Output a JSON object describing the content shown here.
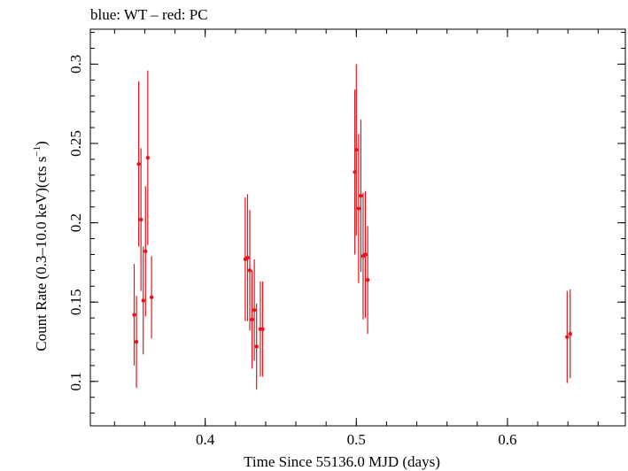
{
  "chart_data": {
    "type": "scatter",
    "title": "blue: WT – red: PC",
    "xlabel": "Time Since 55136.0 MJD (days)",
    "ylabel_main": "Count Rate (0.3–10.0 keV)(cts s",
    "ylabel_sup": "−1",
    "ylabel_close": ")",
    "xlim": [
      0.324,
      0.678
    ],
    "ylim": [
      0.072,
      0.322
    ],
    "xticks": [
      0.4,
      0.5,
      0.6
    ],
    "xtick_labels": [
      "0.4",
      "0.5",
      "0.6"
    ],
    "yticks": [
      0.1,
      0.15,
      0.2,
      0.25,
      0.3
    ],
    "ytick_labels": [
      "0.1",
      "0.15",
      "0.2",
      "0.25",
      "0.3"
    ],
    "grid": false,
    "colors": {
      "pc": "#e8141c",
      "axis": "#000000"
    },
    "series": [
      {
        "name": "PC",
        "color": "#e8141c",
        "points": [
          {
            "x": 0.353,
            "y": 0.142,
            "err": 0.032
          },
          {
            "x": 0.3545,
            "y": 0.125,
            "err": 0.029
          },
          {
            "x": 0.356,
            "y": 0.237,
            "err": 0.052
          },
          {
            "x": 0.3575,
            "y": 0.202,
            "err": 0.045
          },
          {
            "x": 0.359,
            "y": 0.151,
            "err": 0.034
          },
          {
            "x": 0.3605,
            "y": 0.182,
            "err": 0.041
          },
          {
            "x": 0.362,
            "y": 0.241,
            "err": 0.055
          },
          {
            "x": 0.3645,
            "y": 0.153,
            "err": 0.026
          },
          {
            "x": 0.4265,
            "y": 0.177,
            "err": 0.039
          },
          {
            "x": 0.428,
            "y": 0.178,
            "err": 0.04
          },
          {
            "x": 0.4295,
            "y": 0.17,
            "err": 0.038
          },
          {
            "x": 0.431,
            "y": 0.139,
            "err": 0.031
          },
          {
            "x": 0.4325,
            "y": 0.145,
            "err": 0.032
          },
          {
            "x": 0.434,
            "y": 0.122,
            "err": 0.027
          },
          {
            "x": 0.4365,
            "y": 0.133,
            "err": 0.03
          },
          {
            "x": 0.438,
            "y": 0.133,
            "err": 0.03
          },
          {
            "x": 0.499,
            "y": 0.232,
            "err": 0.052
          },
          {
            "x": 0.5,
            "y": 0.246,
            "err": 0.054
          },
          {
            "x": 0.5015,
            "y": 0.209,
            "err": 0.047
          },
          {
            "x": 0.503,
            "y": 0.217,
            "err": 0.048
          },
          {
            "x": 0.5045,
            "y": 0.179,
            "err": 0.04
          },
          {
            "x": 0.506,
            "y": 0.18,
            "err": 0.04
          },
          {
            "x": 0.5075,
            "y": 0.164,
            "err": 0.034
          },
          {
            "x": 0.6395,
            "y": 0.128,
            "err": 0.029
          },
          {
            "x": 0.6415,
            "y": 0.13,
            "err": 0.028
          }
        ]
      }
    ]
  }
}
